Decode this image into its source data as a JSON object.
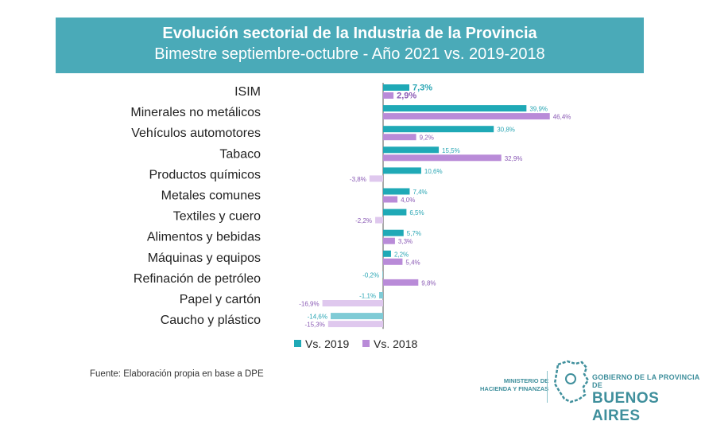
{
  "header": {
    "title": "Evolución sectorial de la Industria de la Provincia",
    "subtitle": "Bimestre septiembre-octubre - Año 2021 vs. 2019-2018"
  },
  "chart_data": {
    "type": "bar",
    "orientation": "horizontal",
    "categories": [
      "ISIM",
      "Minerales no metálicos",
      "Vehículos automotores",
      "Tabaco",
      "Productos químicos",
      "Metales comunes",
      "Textiles y cuero",
      "Alimentos y bebidas",
      "Máquinas y equipos",
      "Refinación de petróleo",
      "Papel y cartón",
      "Caucho y plástico"
    ],
    "series": [
      {
        "name": "Vs. 2019",
        "color": "#1fa9b6",
        "values": [
          7.3,
          39.9,
          30.8,
          15.5,
          10.6,
          7.4,
          6.5,
          5.7,
          2.2,
          -0.2,
          -1.1,
          -14.6
        ],
        "labels": [
          "7,3%",
          "39,9%",
          "30,8%",
          "15,5%",
          "10,6%",
          "7,4%",
          "6,5%",
          "5,7%",
          "2,2%",
          "-0,2%",
          "-1,1%",
          "-14,6%"
        ]
      },
      {
        "name": "Vs. 2018",
        "color": "#b98bd8",
        "values": [
          2.9,
          46.4,
          9.2,
          32.9,
          -3.8,
          4.0,
          -2.2,
          3.3,
          5.4,
          9.8,
          -16.9,
          -15.3
        ],
        "labels": [
          "2,9%",
          "46,4%",
          "9,2%",
          "32,9%",
          "-3,8%",
          "4,0%",
          "-2,2%",
          "3,3%",
          "5,4%",
          "9,8%",
          "-16,9%",
          "-15,3%"
        ]
      }
    ],
    "negative_colors": {
      "Vs. 2019": "#7fcbd6",
      "Vs. 2018": "#dfc8ee"
    },
    "label_colors": {
      "Vs. 2019": "#2aa6b4",
      "Vs. 2018": "#8a5ab5"
    },
    "legend_position": "bottom"
  },
  "footer": {
    "source": "Fuente: Elaboración propia en base a DPE",
    "ministry_line1": "MINISTERIO DE",
    "ministry_line2": "HACIENDA Y FINANZAS",
    "gov_line1": "GOBIERNO DE LA PROVINCIA DE",
    "gov_line2": "BUENOS AIRES"
  }
}
